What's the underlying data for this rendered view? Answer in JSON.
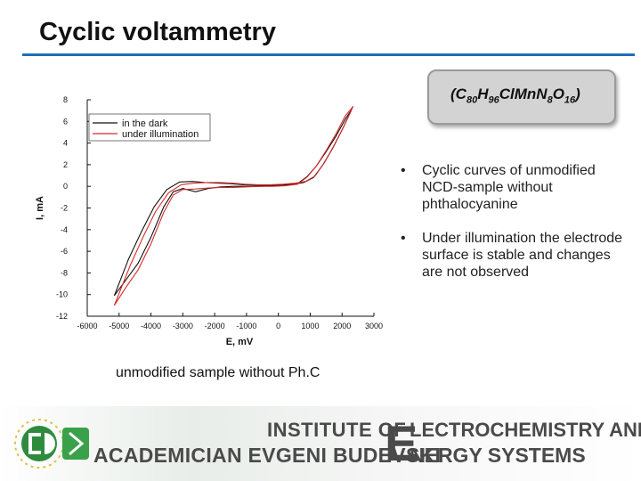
{
  "slide": {
    "title": "Cyclic voltammetry",
    "accent_color": "#1f6fb2",
    "formula_box": {
      "open": "(C",
      "c_sub": "80",
      "h": "H",
      "h_sub": "96",
      "mid": "ClMn",
      "n": "N",
      "n_sub": "8",
      "o": "O",
      "o_sub": "16",
      "close": ")"
    },
    "bullets": [
      "Cyclic curves of unmodified NCD-sample without phthalocyanine",
      "Under  illumination the electrode surface is stable and changes are not observed"
    ],
    "bullet_symbol": "•",
    "caption": "unmodified sample without Ph.C"
  },
  "chart_data": {
    "type": "line",
    "xlabel": "E, mV",
    "ylabel": "I, mA",
    "xlim": [
      -6000,
      3000
    ],
    "ylim": [
      -12,
      8
    ],
    "x_ticks": [
      "-6000",
      "-5000",
      "-4000",
      "-3000",
      "-2000",
      "-1000",
      "0",
      "1000",
      "2000",
      "3000"
    ],
    "y_ticks": [
      "8",
      "6",
      "4",
      "2",
      "0",
      "-2",
      "-4",
      "-6",
      "-8",
      "-10",
      "-12"
    ],
    "legend_placement": "top-left",
    "series": [
      {
        "name": "in the dark",
        "color": "#111111",
        "x": [
          -5150,
          -4800,
          -4400,
          -4000,
          -3600,
          -3300,
          -3000,
          -2600,
          -2200,
          -1800,
          -1400,
          -1000,
          -600,
          -200,
          200,
          600,
          900,
          1200,
          1500,
          1800,
          2100,
          2300
        ],
        "y": [
          -10.1,
          -8.7,
          -7.1,
          -4.7,
          -1.9,
          -0.5,
          -0.2,
          -0.5,
          -0.2,
          -0.05,
          0,
          0,
          0,
          0.05,
          0.1,
          0.25,
          0.9,
          1.9,
          3.2,
          4.6,
          6.2,
          7.1
        ]
      },
      {
        "name": "in the dark",
        "color": "#111111",
        "x": [
          2300,
          2000,
          1700,
          1400,
          1100,
          800,
          500,
          100,
          -300,
          -700,
          -1100,
          -1500,
          -1900,
          -2300,
          -2700,
          -3100,
          -3500,
          -3900,
          -4300,
          -4700,
          -5150
        ],
        "y": [
          7.1,
          5.2,
          3.5,
          2.0,
          0.8,
          0.35,
          0.2,
          0.15,
          0.1,
          0.1,
          0.15,
          0.25,
          0.3,
          0.35,
          0.45,
          0.4,
          -0.3,
          -1.9,
          -4.2,
          -6.7,
          -10.1
        ]
      },
      {
        "name": "under illumination",
        "color": "#d62b2b",
        "x": [
          -5150,
          -4800,
          -4400,
          -4000,
          -3600,
          -3300,
          -3000,
          -2600,
          -2200,
          -1800,
          -1400,
          -1000,
          -600,
          -200,
          200,
          600,
          900,
          1200,
          1500,
          1800,
          2100,
          2350
        ],
        "y": [
          -11.0,
          -9.4,
          -7.7,
          -5.3,
          -2.4,
          -0.8,
          -0.3,
          -0.25,
          -0.15,
          -0.1,
          -0.1,
          -0.05,
          0,
          0,
          0.05,
          0.2,
          0.85,
          1.9,
          3.3,
          4.8,
          6.5,
          7.4
        ]
      },
      {
        "name": "under illumination",
        "color": "#d62b2b",
        "x": [
          2350,
          2050,
          1750,
          1450,
          1150,
          850,
          550,
          150,
          -250,
          -650,
          -1050,
          -1450,
          -1850,
          -2250,
          -2650,
          -3050,
          -3450,
          -3850,
          -4250,
          -4650,
          -5150
        ],
        "y": [
          7.4,
          5.5,
          3.8,
          2.2,
          0.95,
          0.45,
          0.3,
          0.2,
          0.15,
          0.15,
          0.2,
          0.3,
          0.35,
          0.35,
          0.3,
          0.15,
          -0.6,
          -2.3,
          -4.7,
          -7.3,
          -11.0
        ]
      }
    ]
  },
  "banner": {
    "line1": "INSTITUTE OF",
    "line2": "ACADEMICIAN EVGENI BUDEVSKI",
    "big_letter": "E",
    "line1b": "LECTROCHEMISTRY AND",
    "line2b": "NERGY SYSTEMS"
  }
}
